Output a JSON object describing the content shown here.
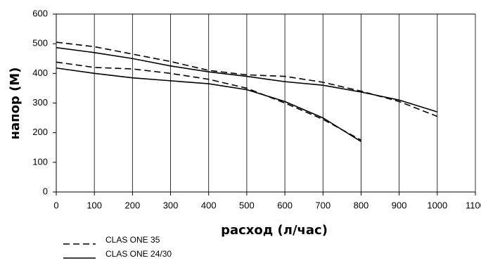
{
  "chart_data": {
    "type": "line",
    "x_label": "расход (л/час)",
    "y_label": "напор (М)",
    "xlim": [
      0,
      1100
    ],
    "xticks": [
      0,
      100,
      200,
      300,
      400,
      500,
      600,
      700,
      800,
      900,
      1000,
      1100
    ],
    "ylim": [
      0,
      600
    ],
    "yticks": [
      0,
      100,
      200,
      300,
      400,
      500,
      600
    ],
    "grid": "x",
    "legend": "bottom-left",
    "series": [
      {
        "name": "CLAS ONE 35",
        "color": "#000000",
        "dashed": true,
        "curves": [
          {
            "x": [
              0,
              100,
              200,
              300,
              400,
              500,
              600,
              700,
              800,
              900,
              1000
            ],
            "values": [
              505,
              490,
              465,
              440,
              410,
              395,
              390,
              370,
              340,
              305,
              255
            ]
          },
          {
            "x": [
              0,
              100,
              200,
              300,
              400,
              500,
              600,
              700,
              800
            ],
            "values": [
              438,
              420,
              415,
              400,
              380,
              350,
              300,
              245,
              175
            ]
          }
        ]
      },
      {
        "name": "CLAS ONE 24/30",
        "color": "#000000",
        "dashed": false,
        "curves": [
          {
            "x": [
              0,
              100,
              200,
              300,
              400,
              500,
              600,
              700,
              800,
              900,
              1000
            ],
            "values": [
              487,
              470,
              450,
              425,
              405,
              390,
              372,
              360,
              337,
              310,
              270
            ]
          },
          {
            "x": [
              0,
              100,
              200,
              300,
              400,
              500,
              600,
              700,
              800
            ],
            "values": [
              418,
              400,
              385,
              375,
              365,
              345,
              305,
              250,
              170
            ]
          }
        ]
      }
    ]
  }
}
